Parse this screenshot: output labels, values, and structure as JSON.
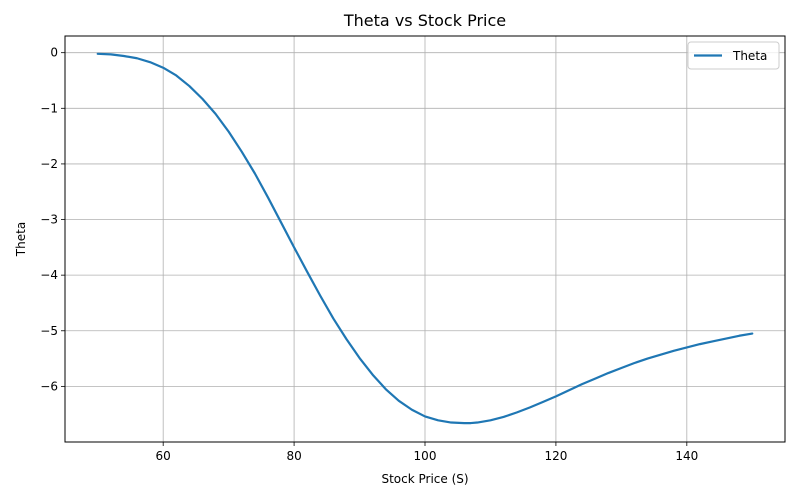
{
  "chart_data": {
    "type": "line",
    "title": "Theta vs Stock Price",
    "xlabel": "Stock Price (S)",
    "ylabel": "Theta",
    "xlim": [
      45,
      155
    ],
    "ylim": [
      -7.0,
      0.3
    ],
    "xticks": [
      60,
      80,
      100,
      120,
      140
    ],
    "yticks": [
      0,
      -1,
      -2,
      -3,
      -4,
      -5,
      -6
    ],
    "grid": true,
    "legend_position": "top-right",
    "colors": {
      "line": "#1f77b4",
      "grid": "#b0b0b0"
    },
    "series": [
      {
        "name": "Theta",
        "x": [
          50,
          52,
          54,
          56,
          58,
          60,
          62,
          64,
          66,
          68,
          70,
          72,
          74,
          76,
          78,
          80,
          82,
          84,
          86,
          88,
          90,
          92,
          94,
          96,
          98,
          100,
          102,
          104,
          106,
          107,
          108,
          110,
          112,
          114,
          116,
          118,
          120,
          122,
          124,
          126,
          128,
          130,
          132,
          134,
          136,
          138,
          140,
          142,
          144,
          146,
          148,
          150
        ],
        "y": [
          -0.02,
          -0.03,
          -0.06,
          -0.1,
          -0.17,
          -0.27,
          -0.41,
          -0.6,
          -0.83,
          -1.1,
          -1.42,
          -1.78,
          -2.17,
          -2.6,
          -3.05,
          -3.5,
          -3.94,
          -4.37,
          -4.78,
          -5.15,
          -5.49,
          -5.79,
          -6.05,
          -6.26,
          -6.42,
          -6.54,
          -6.61,
          -6.65,
          -6.66,
          -6.66,
          -6.65,
          -6.61,
          -6.55,
          -6.47,
          -6.38,
          -6.28,
          -6.18,
          -6.07,
          -5.96,
          -5.86,
          -5.76,
          -5.67,
          -5.58,
          -5.5,
          -5.43,
          -5.36,
          -5.3,
          -5.24,
          -5.19,
          -5.14,
          -5.09,
          -5.05
        ]
      }
    ]
  }
}
